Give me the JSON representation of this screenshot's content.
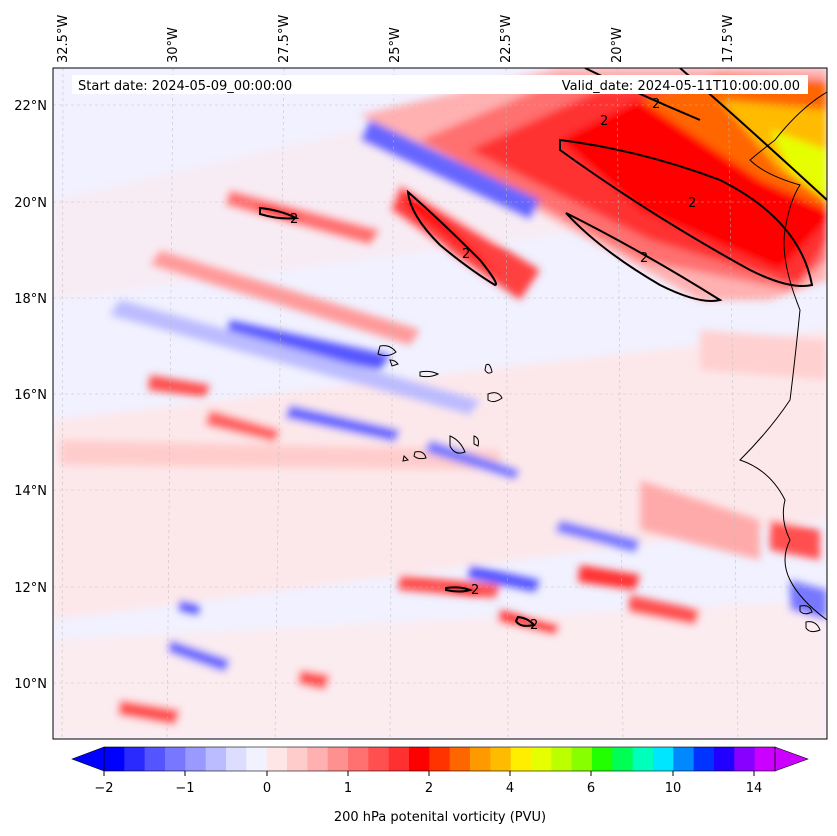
{
  "header": {
    "start_date": "Start date: 2024-05-09_00:00:00",
    "valid_date": "Valid_date: 2024-05-11T10:00:00.00"
  },
  "map": {
    "lon_labels": [
      "32.5°W",
      "30°W",
      "27.5°W",
      "25°W",
      "22.5°W",
      "20°W",
      "17.5°W"
    ],
    "lat_labels": [
      "22°N",
      "20°N",
      "18°N",
      "16°N",
      "14°N",
      "12°N",
      "10°N"
    ],
    "contour_label": "2",
    "gridlines": "dashed"
  },
  "colorbar": {
    "label": "200 hPa potenital vorticity (PVU)",
    "tick_labels": [
      "−2",
      "−1",
      "0",
      "1",
      "2",
      "4",
      "6",
      "10",
      "14"
    ],
    "extend": "both",
    "colors": [
      "#0000ff",
      "#2a2aff",
      "#5555ff",
      "#7777ff",
      "#9999ff",
      "#bbbbff",
      "#ddddff",
      "#f2f2ff",
      "#ffe6e6",
      "#ffcccc",
      "#ffb0b0",
      "#ff9090",
      "#ff7070",
      "#ff5050",
      "#ff3030",
      "#ff0000",
      "#ff3300",
      "#ff6600",
      "#ff9900",
      "#ffbb00",
      "#ffee00",
      "#e6ff00",
      "#bbff00",
      "#88ff00",
      "#22ff00",
      "#00ff55",
      "#00ffbb",
      "#00e6ff",
      "#0088ff",
      "#0033ff",
      "#2200ff",
      "#8800ff",
      "#cc00ff"
    ]
  }
}
